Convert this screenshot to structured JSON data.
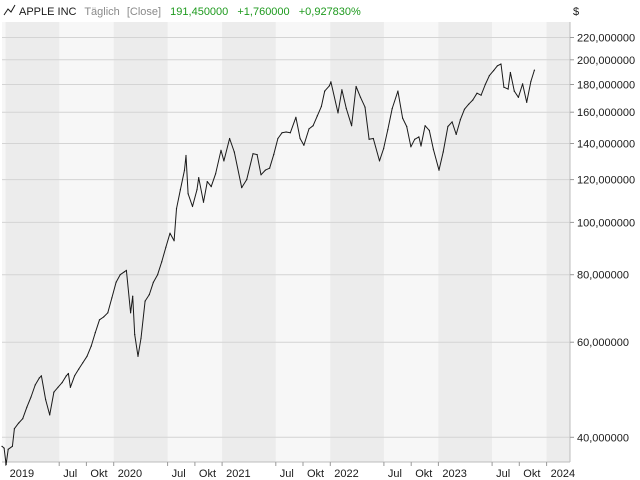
{
  "header": {
    "symbol": "APPLE INC",
    "interval": "Täglich",
    "mode": "[Close]",
    "last": "191,450000",
    "change_abs": "+1,760000",
    "change_pct": "+0,927830%",
    "currency": "$",
    "colors": {
      "symbol": "#1a1a1a",
      "muted": "#8a8a8a",
      "positive": "#1e9a1e"
    }
  },
  "chart_data": {
    "type": "line",
    "title": "APPLE INC",
    "ylabel": "$",
    "y_scale": "log",
    "ylim": [
      36,
      235
    ],
    "y_ticks": [
      40,
      60,
      80,
      100,
      120,
      140,
      160,
      180,
      200,
      220
    ],
    "y_tick_labels": [
      "40,000000",
      "60,000000",
      "80,000000",
      "100,000000",
      "120,000000",
      "140,000000",
      "160,000000",
      "180,000000",
      "200,000000",
      "220,000000"
    ],
    "xlim": [
      "2018-12-20",
      "2024-03-20"
    ],
    "x_ticks": [
      {
        "label": "2019",
        "date": "2019-01-01"
      },
      {
        "label": "Jul",
        "date": "2019-07-01"
      },
      {
        "label": "Okt",
        "date": "2019-10-01"
      },
      {
        "label": "2020",
        "date": "2020-01-01"
      },
      {
        "label": "Jul",
        "date": "2020-07-01"
      },
      {
        "label": "Okt",
        "date": "2020-10-01"
      },
      {
        "label": "2021",
        "date": "2021-01-01"
      },
      {
        "label": "Jul",
        "date": "2021-07-01"
      },
      {
        "label": "Okt",
        "date": "2021-10-01"
      },
      {
        "label": "2022",
        "date": "2022-01-01"
      },
      {
        "label": "Jul",
        "date": "2022-07-01"
      },
      {
        "label": "Okt",
        "date": "2022-10-01"
      },
      {
        "label": "2023",
        "date": "2023-01-01"
      },
      {
        "label": "Jul",
        "date": "2023-07-01"
      },
      {
        "label": "Okt",
        "date": "2023-10-01"
      },
      {
        "label": "2024",
        "date": "2024-01-01"
      }
    ],
    "grid": true,
    "series": [
      {
        "color": "#1a1a1a",
        "points": [
          [
            "2018-12-20",
            38.5
          ],
          [
            "2018-12-27",
            38.2
          ],
          [
            "2019-01-03",
            35.6
          ],
          [
            "2019-01-10",
            38.0
          ],
          [
            "2019-01-24",
            38.5
          ],
          [
            "2019-01-31",
            41.5
          ],
          [
            "2019-02-14",
            42.5
          ],
          [
            "2019-02-28",
            43.3
          ],
          [
            "2019-03-14",
            45.5
          ],
          [
            "2019-03-28",
            47.5
          ],
          [
            "2019-04-11",
            50.0
          ],
          [
            "2019-04-25",
            51.5
          ],
          [
            "2019-05-02",
            52.0
          ],
          [
            "2019-05-16",
            47.0
          ],
          [
            "2019-05-30",
            44.0
          ],
          [
            "2019-06-13",
            48.5
          ],
          [
            "2019-06-27",
            49.5
          ],
          [
            "2019-07-11",
            50.5
          ],
          [
            "2019-07-25",
            52.0
          ],
          [
            "2019-08-01",
            52.5
          ],
          [
            "2019-08-08",
            49.5
          ],
          [
            "2019-08-22",
            52.0
          ],
          [
            "2019-09-05",
            53.5
          ],
          [
            "2019-09-19",
            55.0
          ],
          [
            "2019-10-03",
            56.5
          ],
          [
            "2019-10-17",
            59.0
          ],
          [
            "2019-10-31",
            62.5
          ],
          [
            "2019-11-14",
            66.0
          ],
          [
            "2019-11-28",
            66.8
          ],
          [
            "2019-12-12",
            68.0
          ],
          [
            "2019-12-26",
            72.5
          ],
          [
            "2020-01-09",
            77.5
          ],
          [
            "2020-01-23",
            80.0
          ],
          [
            "2020-02-06",
            81.0
          ],
          [
            "2020-02-13",
            81.5
          ],
          [
            "2020-02-27",
            68.0
          ],
          [
            "2020-03-05",
            73.0
          ],
          [
            "2020-03-12",
            62.0
          ],
          [
            "2020-03-23",
            56.5
          ],
          [
            "2020-04-02",
            61.0
          ],
          [
            "2020-04-16",
            71.5
          ],
          [
            "2020-04-30",
            73.5
          ],
          [
            "2020-05-14",
            77.5
          ],
          [
            "2020-05-28",
            80.0
          ],
          [
            "2020-06-11",
            84.5
          ],
          [
            "2020-06-25",
            90.0
          ],
          [
            "2020-07-09",
            95.5
          ],
          [
            "2020-07-23",
            92.5
          ],
          [
            "2020-07-31",
            106.0
          ],
          [
            "2020-08-13",
            115.0
          ],
          [
            "2020-08-27",
            125.0
          ],
          [
            "2020-09-01",
            133.0
          ],
          [
            "2020-09-08",
            113.0
          ],
          [
            "2020-09-23",
            107.0
          ],
          [
            "2020-10-08",
            115.0
          ],
          [
            "2020-10-14",
            121.0
          ],
          [
            "2020-10-30",
            109.0
          ],
          [
            "2020-11-12",
            119.0
          ],
          [
            "2020-11-25",
            116.5
          ],
          [
            "2020-12-10",
            123.0
          ],
          [
            "2020-12-28",
            136.0
          ],
          [
            "2021-01-07",
            130.0
          ],
          [
            "2021-01-26",
            143.0
          ],
          [
            "2021-02-11",
            135.0
          ],
          [
            "2021-03-08",
            116.0
          ],
          [
            "2021-03-25",
            120.0
          ],
          [
            "2021-04-15",
            134.0
          ],
          [
            "2021-04-29",
            133.5
          ],
          [
            "2021-05-12",
            122.5
          ],
          [
            "2021-05-27",
            125.0
          ],
          [
            "2021-06-10",
            126.0
          ],
          [
            "2021-06-24",
            133.5
          ],
          [
            "2021-07-08",
            143.0
          ],
          [
            "2021-07-22",
            146.5
          ],
          [
            "2021-08-05",
            147.0
          ],
          [
            "2021-08-19",
            146.5
          ],
          [
            "2021-09-07",
            156.5
          ],
          [
            "2021-09-21",
            143.0
          ],
          [
            "2021-10-04",
            139.0
          ],
          [
            "2021-10-21",
            149.0
          ],
          [
            "2021-11-04",
            151.0
          ],
          [
            "2021-11-18",
            157.5
          ],
          [
            "2021-12-02",
            164.0
          ],
          [
            "2021-12-13",
            175.0
          ],
          [
            "2021-12-29",
            179.0
          ],
          [
            "2022-01-03",
            182.0
          ],
          [
            "2022-01-27",
            159.5
          ],
          [
            "2022-02-09",
            176.0
          ],
          [
            "2022-02-24",
            162.5
          ],
          [
            "2022-03-14",
            151.0
          ],
          [
            "2022-03-29",
            178.5
          ],
          [
            "2022-04-13",
            170.5
          ],
          [
            "2022-04-28",
            163.5
          ],
          [
            "2022-05-12",
            142.5
          ],
          [
            "2022-05-26",
            143.0
          ],
          [
            "2022-06-16",
            130.0
          ],
          [
            "2022-06-30",
            137.0
          ],
          [
            "2022-07-14",
            148.5
          ],
          [
            "2022-07-29",
            162.5
          ],
          [
            "2022-08-17",
            175.0
          ],
          [
            "2022-09-02",
            156.0
          ],
          [
            "2022-09-16",
            150.5
          ],
          [
            "2022-09-30",
            138.0
          ],
          [
            "2022-10-13",
            142.5
          ],
          [
            "2022-10-27",
            144.0
          ],
          [
            "2022-11-03",
            138.5
          ],
          [
            "2022-11-17",
            151.0
          ],
          [
            "2022-12-01",
            148.0
          ],
          [
            "2022-12-15",
            136.5
          ],
          [
            "2023-01-03",
            125.0
          ],
          [
            "2023-01-17",
            135.0
          ],
          [
            "2023-02-02",
            150.5
          ],
          [
            "2023-02-16",
            153.5
          ],
          [
            "2023-03-02",
            145.5
          ],
          [
            "2023-03-16",
            155.0
          ],
          [
            "2023-03-30",
            162.0
          ],
          [
            "2023-04-13",
            165.5
          ],
          [
            "2023-04-27",
            168.5
          ],
          [
            "2023-05-11",
            173.5
          ],
          [
            "2023-05-25",
            172.0
          ],
          [
            "2023-06-08",
            180.0
          ],
          [
            "2023-06-22",
            187.0
          ],
          [
            "2023-07-06",
            191.0
          ],
          [
            "2023-07-19",
            195.0
          ],
          [
            "2023-07-31",
            196.5
          ],
          [
            "2023-08-10",
            178.0
          ],
          [
            "2023-08-24",
            176.5
          ],
          [
            "2023-09-01",
            189.5
          ],
          [
            "2023-09-14",
            175.0
          ],
          [
            "2023-09-28",
            170.5
          ],
          [
            "2023-10-12",
            180.5
          ],
          [
            "2023-10-26",
            166.9
          ],
          [
            "2023-11-09",
            182.4
          ],
          [
            "2023-11-21",
            191.45
          ]
        ]
      }
    ]
  }
}
